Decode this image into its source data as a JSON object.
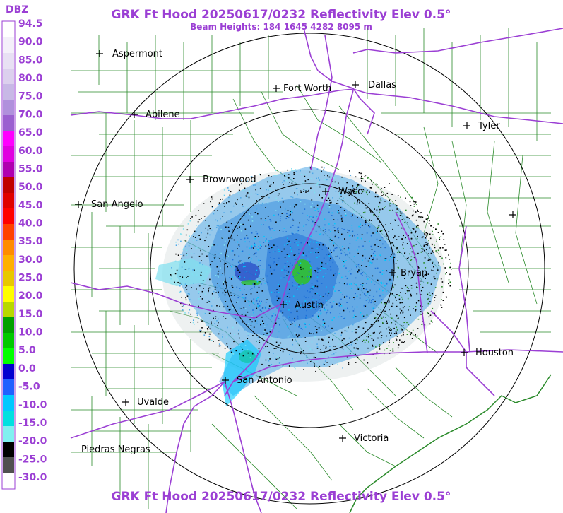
{
  "title": "GRK Ft Hood 20250617/0232 Reflectivity Elev 0.5°",
  "beam_heights": "Beam Heights: 184 1645 4282 8095 m",
  "footer_title": "GRK Ft Hood 20250617/0232 Reflectivity Elev 0.5°",
  "scale": {
    "unit": "DBZ",
    "labels": [
      "94.5",
      "90.0",
      "85.0",
      "80.0",
      "75.0",
      "70.0",
      "65.0",
      "60.0",
      "55.0",
      "50.0",
      "45.0",
      "40.0",
      "35.0",
      "30.0",
      "25.0",
      "20.0",
      "15.0",
      "10.0",
      "5.0",
      "0.0",
      "-5.0",
      "-10.0",
      "-15.0",
      "-20.0",
      "-25.0",
      "-30.0"
    ],
    "colors": [
      "#ffffff",
      "#f4f0fa",
      "#e8e0f4",
      "#dcd0ee",
      "#c8b8e6",
      "#b090dc",
      "#9b5fd0",
      "#ff00ff",
      "#e000e0",
      "#b000b0",
      "#c00000",
      "#e00000",
      "#ff0000",
      "#ff4000",
      "#ff8c00",
      "#ffb000",
      "#e8c800",
      "#ffff00",
      "#b8d800",
      "#00a000",
      "#00c800",
      "#00ff00",
      "#0000d0",
      "#2060ff",
      "#00c8ff",
      "#00e0e0",
      "#80f0f0",
      "#000000",
      "#505050",
      "#ffffff"
    ]
  },
  "cities": [
    {
      "name": "Aspermont"
    },
    {
      "name": "Fort Worth"
    },
    {
      "name": "Dallas"
    },
    {
      "name": "Abilene"
    },
    {
      "name": "Tyler"
    },
    {
      "name": "Brownwood"
    },
    {
      "name": "Waco"
    },
    {
      "name": "San Angelo"
    },
    {
      "name": "Bryan"
    },
    {
      "name": "Austin"
    },
    {
      "name": "Houston"
    },
    {
      "name": "San Antonio"
    },
    {
      "name": "Uvalde"
    },
    {
      "name": "Victoria"
    },
    {
      "name": "Piedras Negras"
    },
    {
      "name": ""
    }
  ],
  "colors": {
    "title": "#9b3fd4",
    "county_lines": "#2a8a2a",
    "highways": "#9b3fd4",
    "range_rings": "#000000"
  }
}
